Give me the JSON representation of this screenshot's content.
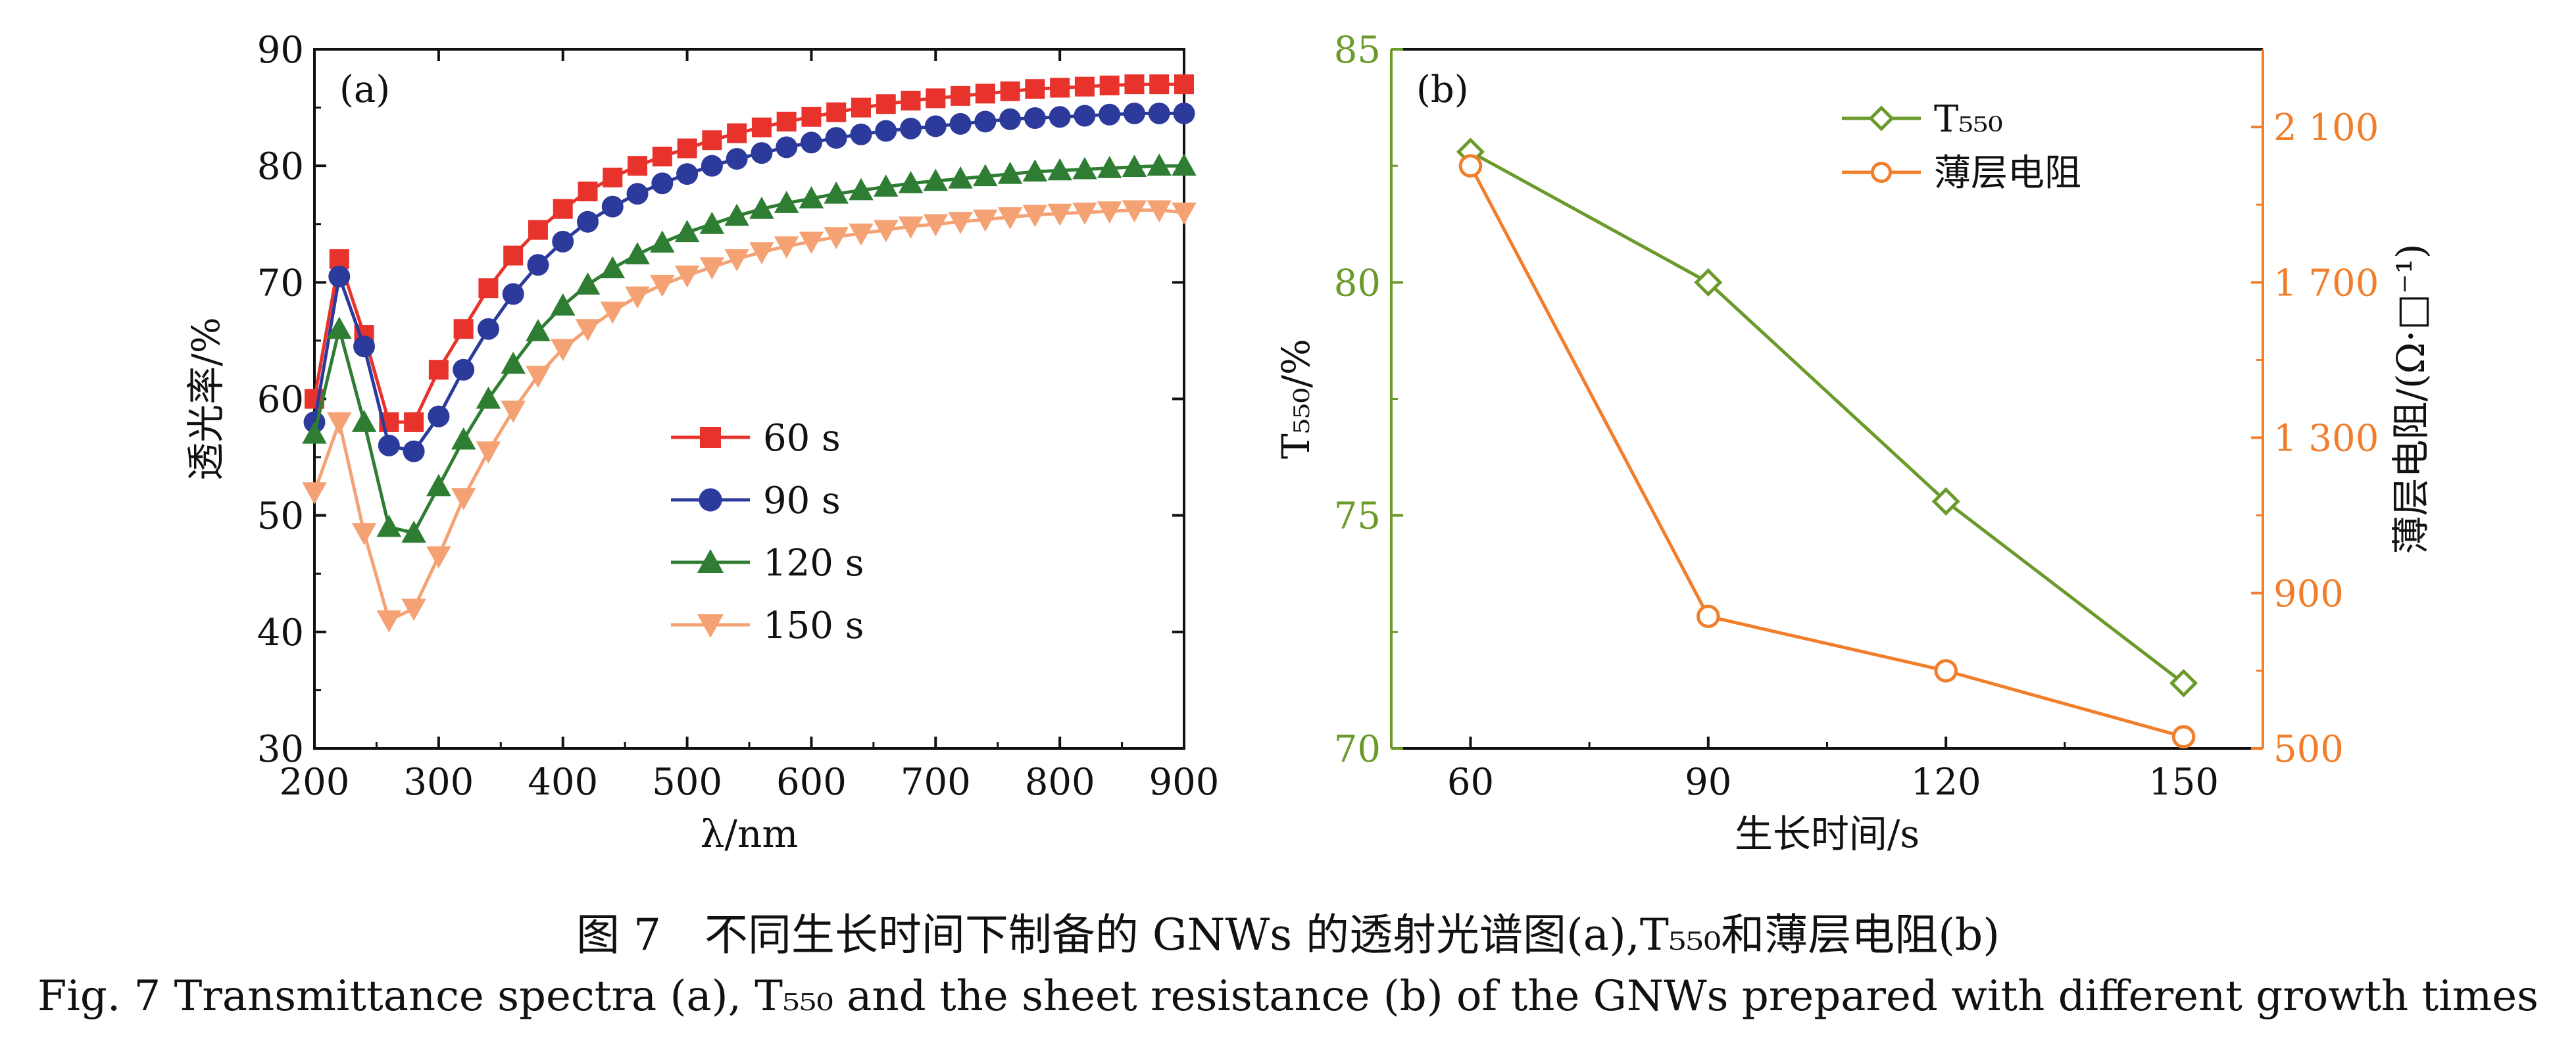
{
  "caption": {
    "zh": "图 7　不同生长时间下制备的 GNWs 的透射光谱图(a),T₅₅₀和薄层电阻(b)",
    "en": "Fig. 7  Transmittance spectra (a), T₅₅₀ and the sheet resistance (b) of the GNWs prepared with different growth times"
  },
  "chart_data": [
    {
      "type": "line",
      "panel_label": "(a)",
      "xlabel": "λ/nm",
      "ylabel": "透光率/%",
      "xlim": [
        200,
        900
      ],
      "ylim": [
        30,
        90
      ],
      "xticks": [
        200,
        300,
        400,
        500,
        600,
        700,
        800,
        900
      ],
      "yticks": [
        30,
        40,
        50,
        60,
        70,
        80,
        90
      ],
      "legend_position": "center-right",
      "grid": false,
      "x": [
        200,
        220,
        240,
        260,
        280,
        300,
        320,
        340,
        360,
        380,
        400,
        420,
        440,
        460,
        480,
        500,
        520,
        540,
        560,
        580,
        600,
        620,
        640,
        660,
        680,
        700,
        720,
        740,
        760,
        780,
        800,
        820,
        840,
        860,
        880,
        900
      ],
      "series": [
        {
          "name": "60 s",
          "color": "#e8332c",
          "marker": "square",
          "values": [
            60,
            72,
            65.5,
            58,
            58,
            62.5,
            66,
            69.5,
            72.3,
            74.5,
            76.3,
            77.8,
            79,
            80,
            80.8,
            81.5,
            82.2,
            82.8,
            83.3,
            83.8,
            84.2,
            84.6,
            85,
            85.3,
            85.6,
            85.8,
            86,
            86.2,
            86.4,
            86.6,
            86.7,
            86.8,
            86.9,
            87,
            87,
            87
          ]
        },
        {
          "name": "90 s",
          "color": "#2b3a9b",
          "marker": "circle",
          "values": [
            58,
            70.5,
            64.5,
            56,
            55.5,
            58.5,
            62.5,
            66,
            69,
            71.5,
            73.5,
            75.2,
            76.5,
            77.6,
            78.5,
            79.3,
            80,
            80.6,
            81.1,
            81.6,
            82,
            82.4,
            82.7,
            83,
            83.2,
            83.4,
            83.6,
            83.8,
            84,
            84.1,
            84.2,
            84.3,
            84.4,
            84.5,
            84.5,
            84.5
          ]
        },
        {
          "name": "120 s",
          "color": "#2e7d32",
          "marker": "triangle-up",
          "values": [
            57,
            66,
            58,
            49,
            48.5,
            52.5,
            56.5,
            60,
            63,
            65.8,
            68,
            69.8,
            71.2,
            72.4,
            73.4,
            74.3,
            75,
            75.7,
            76.3,
            76.8,
            77.2,
            77.6,
            77.9,
            78.2,
            78.5,
            78.7,
            78.9,
            79.1,
            79.3,
            79.5,
            79.6,
            79.7,
            79.8,
            79.9,
            80,
            80
          ]
        },
        {
          "name": "150 s",
          "color": "#f4a274",
          "marker": "triangle-down",
          "values": [
            52,
            58,
            48.5,
            41,
            42,
            46.5,
            51.5,
            55.5,
            59,
            62,
            64.3,
            66,
            67.5,
            68.8,
            69.8,
            70.6,
            71.3,
            72,
            72.6,
            73.1,
            73.5,
            73.9,
            74.2,
            74.5,
            74.8,
            75,
            75.2,
            75.4,
            75.6,
            75.8,
            75.9,
            76,
            76.1,
            76.2,
            76.2,
            76
          ]
        }
      ]
    },
    {
      "type": "line",
      "panel_label": "(b)",
      "xlabel": "生长时间/s",
      "ylabel_left": "T₅₅₀/%",
      "ylabel_right": "薄层电阻/(Ω·□⁻¹)",
      "categories": [
        "60",
        "90",
        "120",
        "150"
      ],
      "x": [
        60,
        90,
        120,
        150
      ],
      "xlim": [
        50,
        160
      ],
      "ylim_left": [
        70,
        85
      ],
      "ylim_right": [
        500,
        2300
      ],
      "yticks_left": [
        70,
        75,
        80,
        85
      ],
      "yticks_right": [
        500,
        900,
        1300,
        1700,
        2100
      ],
      "ytick_labels_right": [
        "500",
        "900",
        "1 300",
        "1 700",
        "2 100"
      ],
      "left_axis_color": "#6a9a2a",
      "right_axis_color": "#f07e2a",
      "legend_position": "top-right",
      "grid": false,
      "series": [
        {
          "name": "T₅₅₀",
          "axis": "left",
          "color": "#6a9a2a",
          "marker": "diamond-open",
          "values": [
            82.8,
            80,
            75.3,
            71.4
          ]
        },
        {
          "name": "薄层电阻",
          "axis": "right",
          "color": "#f07e2a",
          "marker": "circle-open",
          "values": [
            2000,
            840,
            700,
            530
          ]
        }
      ]
    }
  ]
}
